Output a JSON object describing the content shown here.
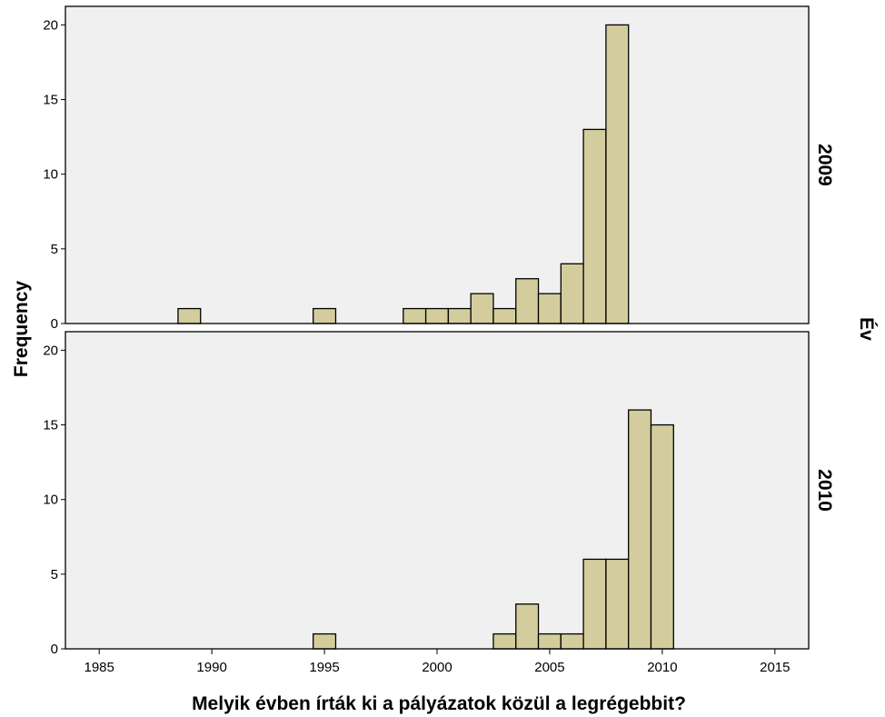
{
  "chart_data": {
    "type": "bar",
    "subtype": "histogram-faceted",
    "xlabel": "Melyik évben írták ki a pályázatok közül a legrégebbit?",
    "ylabel": "Frequency",
    "facet_label": "Év",
    "xlim": [
      1983.5,
      2016.5
    ],
    "ylim": [
      0,
      21
    ],
    "x_ticks": [
      "1985",
      "1990",
      "1995",
      "2000",
      "2005",
      "2010",
      "2015"
    ],
    "y_ticks": [
      "0",
      "5",
      "10",
      "15",
      "20"
    ],
    "bin_width": 1,
    "bar_color": "#d3cd9d",
    "bar_stroke": "#000000",
    "panel_bg": "#f0f0f0",
    "panels": [
      {
        "name": "2009",
        "bins": [
          {
            "x": 1989,
            "y": 1
          },
          {
            "x": 1995,
            "y": 1
          },
          {
            "x": 1999,
            "y": 1
          },
          {
            "x": 2000,
            "y": 1
          },
          {
            "x": 2001,
            "y": 1
          },
          {
            "x": 2002,
            "y": 2
          },
          {
            "x": 2003,
            "y": 1
          },
          {
            "x": 2004,
            "y": 3
          },
          {
            "x": 2005,
            "y": 2
          },
          {
            "x": 2006,
            "y": 4
          },
          {
            "x": 2007,
            "y": 13
          },
          {
            "x": 2008,
            "y": 20
          }
        ]
      },
      {
        "name": "2010",
        "bins": [
          {
            "x": 1995,
            "y": 1
          },
          {
            "x": 2003,
            "y": 1
          },
          {
            "x": 2004,
            "y": 3
          },
          {
            "x": 2005,
            "y": 1
          },
          {
            "x": 2006,
            "y": 1
          },
          {
            "x": 2007,
            "y": 6
          },
          {
            "x": 2008,
            "y": 6
          },
          {
            "x": 2009,
            "y": 16
          },
          {
            "x": 2010,
            "y": 15
          }
        ]
      }
    ]
  }
}
